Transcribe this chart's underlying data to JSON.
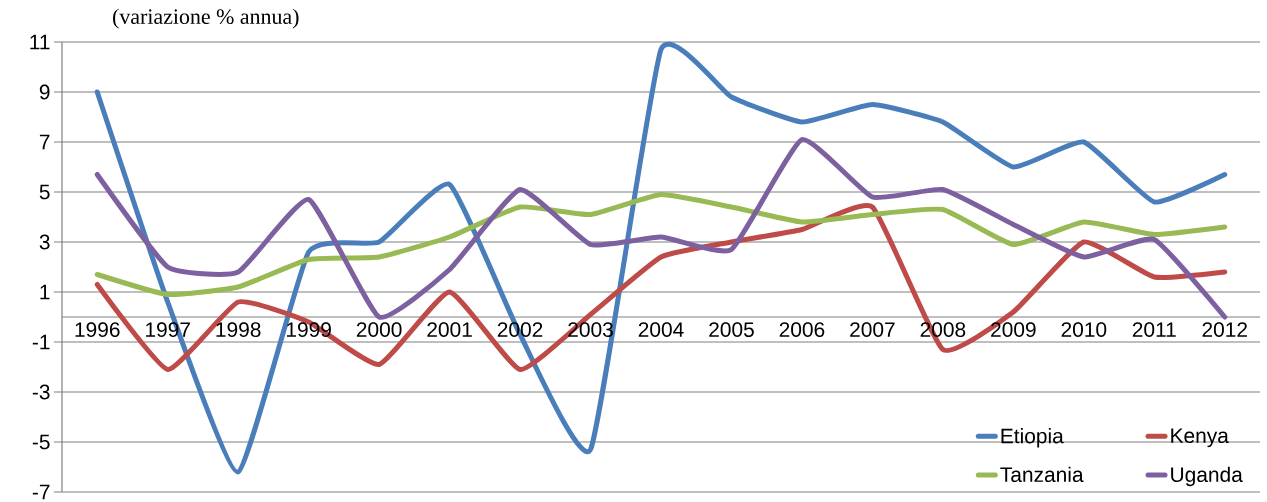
{
  "chart_data": {
    "type": "line",
    "title": "(variazione % annua)",
    "categories": [
      "1996",
      "1997",
      "1998",
      "1999",
      "2000",
      "2001",
      "2002",
      "2003",
      "2004",
      "2005",
      "2006",
      "2007",
      "2008",
      "2009",
      "2010",
      "2011",
      "2012"
    ],
    "series": [
      {
        "name": "Etiopia",
        "color": "#4a7ebb",
        "values": [
          9.0,
          0.6,
          -6.2,
          2.6,
          3.0,
          5.3,
          -0.7,
          -5.3,
          10.7,
          8.8,
          7.8,
          8.5,
          7.8,
          6.0,
          7.0,
          4.6,
          5.7
        ]
      },
      {
        "name": "Kenya",
        "color": "#be4b48",
        "values": [
          1.3,
          -2.1,
          0.6,
          -0.2,
          -1.9,
          1.0,
          -2.1,
          0.1,
          2.4,
          3.0,
          3.5,
          4.4,
          -1.3,
          0.2,
          3.0,
          1.6,
          1.8
        ]
      },
      {
        "name": "Tanzania",
        "color": "#98b954",
        "values": [
          1.7,
          0.9,
          1.2,
          2.3,
          2.4,
          3.2,
          4.4,
          4.1,
          4.9,
          4.4,
          3.8,
          4.1,
          4.3,
          2.9,
          3.8,
          3.3,
          3.6
        ]
      },
      {
        "name": "Uganda",
        "color": "#7d60a0",
        "values": [
          5.7,
          2.0,
          1.8,
          4.7,
          0.0,
          1.9,
          5.1,
          2.9,
          3.2,
          2.7,
          7.1,
          4.8,
          5.1,
          3.7,
          2.4,
          3.1,
          0.0
        ]
      }
    ],
    "ylim": [
      -7,
      11
    ],
    "yticks": [
      -7,
      -5,
      -3,
      -1,
      1,
      3,
      5,
      7,
      9,
      11
    ],
    "grid": "y",
    "legend": "bottom right",
    "line_style": "solid"
  }
}
